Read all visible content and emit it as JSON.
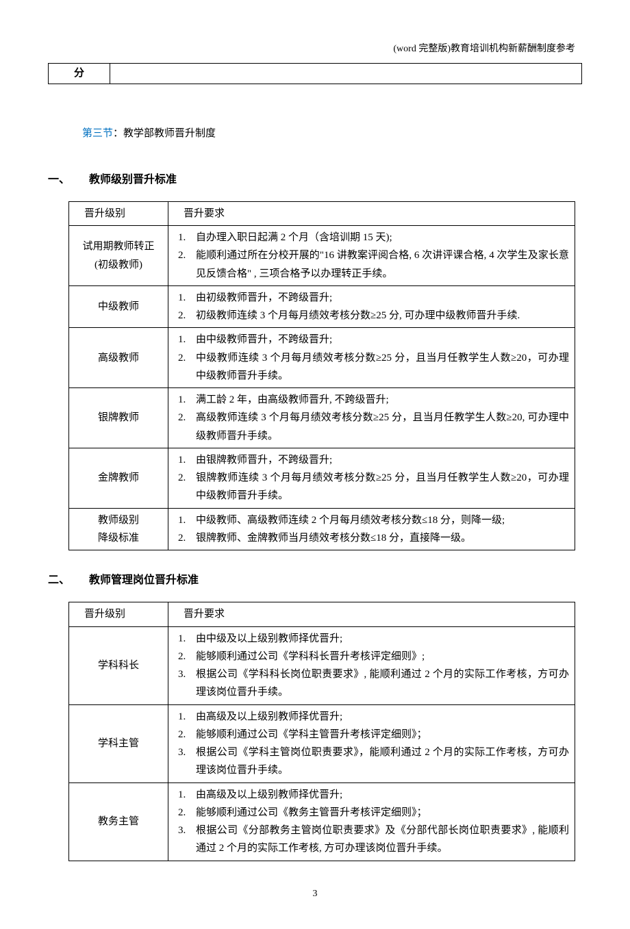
{
  "header_note": "(word 完整版)教育培训机构新薪酬制度参考",
  "top_fen": "分",
  "section3": {
    "link": "第三节",
    "suffix": "：教学部教师晋升制度"
  },
  "h1": {
    "num": "一、",
    "title": "教师级别晋升标准"
  },
  "table1": {
    "col1_header": "晋升级别",
    "col2_header": "晋升要求",
    "rows": [
      {
        "level1": "试用期教师转正",
        "level2": "(初级教师)",
        "items": [
          "自办理入职日起满 2 个月（含培训期 15 天);",
          "能顺利通过所在分校开展的\"16 讲教案评阅合格, 6 次讲评课合格, 4 次学生及家长意见反馈合格\" , 三项合格予以办理转正手续。"
        ]
      },
      {
        "level": "中级教师",
        "items": [
          "由初级教师晋升，不跨级晋升;",
          "初级教师连续 3 个月每月绩效考核分数≥25 分, 可办理中级教师晋升手续."
        ]
      },
      {
        "level": "高级教师",
        "items": [
          "由中级教师晋升，不跨级晋升;",
          "中级教师连续 3 个月每月绩效考核分数≥25 分，且当月任教学生人数≥20，可办理中级教师晋升手续。"
        ]
      },
      {
        "level": "银牌教师",
        "items": [
          "满工龄 2 年，由高级教师晋升, 不跨级晋升;",
          "高级教师连续 3 个月每月绩效考核分数≥25 分，且当月任教学生人数≥20, 可办理中级教师晋升手续。"
        ]
      },
      {
        "level": "金牌教师",
        "items": [
          "由银牌教师晋升，不跨级晋升;",
          "银牌教师连续 3 个月每月绩效考核分数≥25 分，且当月任教学生人数≥20，可办理中级教师晋升手续。"
        ]
      },
      {
        "level1": "教师级别",
        "level2": "降级标准",
        "items": [
          "中级教师、高级教师连续 2 个月每月绩效考核分数≤18 分，则降一级;",
          "银牌教师、金牌教师当月绩效考核分数≤18 分，直接降一级。"
        ]
      }
    ]
  },
  "h2": {
    "num": "二、",
    "title": "教师管理岗位晋升标准"
  },
  "table2": {
    "col1_header": "晋升级别",
    "col2_header": "晋升要求",
    "rows": [
      {
        "level": "学科科长",
        "items": [
          "由中级及以上级别教师择优晋升;",
          "能够顺利通过公司《学科科长晋升考核评定细则》;",
          "根据公司《学科科长岗位职责要求》, 能顺利通过 2 个月的实际工作考核，方可办理该岗位晋升手续。"
        ]
      },
      {
        "level": "学科主管",
        "items": [
          "由高级及以上级别教师择优晋升;",
          "能够顺利通过公司《学科主管晋升考核评定细则》；",
          "根据公司《学科主管岗位职责要求》，能顺利通过 2 个月的实际工作考核，方可办理该岗位晋升手续。"
        ]
      },
      {
        "level": "教务主管",
        "items": [
          "由高级及以上级别教师择优晋升;",
          "能够顺利通过公司《教务主管晋升考核评定细则》；",
          "根据公司《分部教务主管岗位职责要求》及《分部代部长岗位职责要求》, 能顺利通过 2 个月的实际工作考核, 方可办理该岗位晋升手续。"
        ]
      }
    ]
  },
  "page_number": "3"
}
